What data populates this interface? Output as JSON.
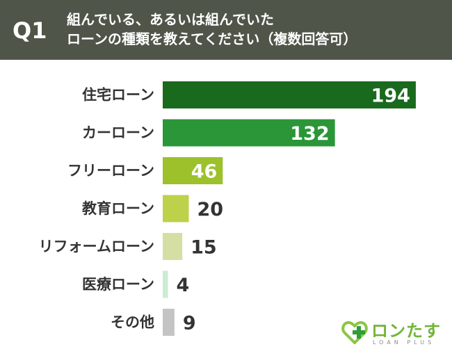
{
  "header": {
    "question_number": "Q1",
    "question_line1": "組んでいる、あるいは組んでいた",
    "question_line2": "ローンの種類を教えてください（複数回答可）"
  },
  "chart_data": {
    "type": "bar",
    "orientation": "horizontal",
    "categories": [
      "住宅ローン",
      "カーローン",
      "フリーローン",
      "教育ローン",
      "リフォームローン",
      "医療ローン",
      "その他"
    ],
    "values": [
      194,
      132,
      46,
      20,
      15,
      4,
      9
    ],
    "colors": [
      "#1a6a1e",
      "#2a9638",
      "#9dc12b",
      "#bdd24a",
      "#d5dfa4",
      "#c9ecd2",
      "#c4c4c4"
    ],
    "value_label_inside": [
      true,
      true,
      true,
      false,
      false,
      false,
      false
    ]
  },
  "logo": {
    "name": "ロンたす",
    "sub": "LOAN PLUS"
  }
}
